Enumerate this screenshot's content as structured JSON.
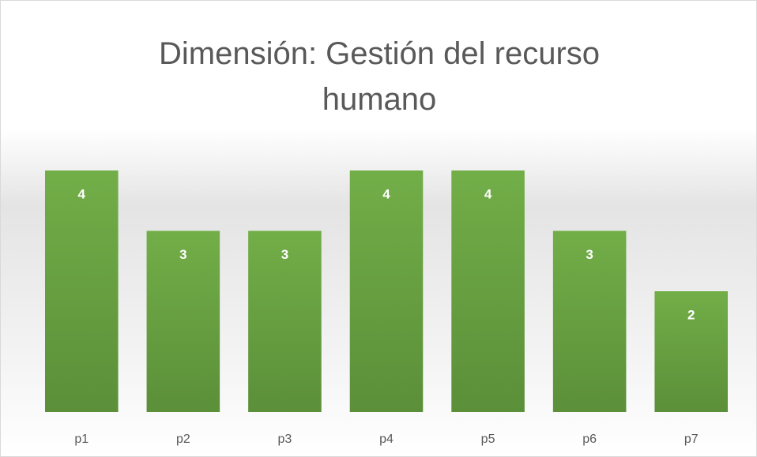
{
  "chart_data": {
    "type": "bar",
    "title": "Dimensión: Gestión del recurso humano",
    "categories": [
      "p1",
      "p2",
      "p3",
      "p4",
      "p5",
      "p6",
      "p7"
    ],
    "values": [
      4,
      3,
      3,
      4,
      4,
      3,
      2
    ],
    "color": "#70ad47",
    "ylim": [
      0,
      4
    ]
  }
}
